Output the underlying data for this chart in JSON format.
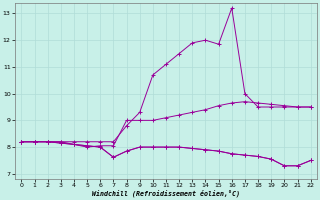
{
  "xlabel": "Windchill (Refroidissement éolien,°C)",
  "bg_color": "#c8f0e8",
  "line_color": "#990099",
  "grid_color": "#b0ddd8",
  "xlim": [
    -0.5,
    22.5
  ],
  "ylim": [
    6.8,
    13.4
  ],
  "yticks": [
    7,
    8,
    9,
    10,
    11,
    12,
    13
  ],
  "xticks": [
    0,
    1,
    2,
    3,
    4,
    5,
    6,
    7,
    8,
    9,
    10,
    11,
    12,
    13,
    14,
    15,
    16,
    17,
    18,
    19,
    20,
    21,
    22
  ],
  "lines": [
    [
      8.2,
      8.2,
      8.2,
      8.2,
      8.2,
      8.2,
      8.2,
      8.2,
      8.8,
      9.3,
      10.7,
      11.1,
      11.5,
      11.9,
      12.0,
      11.85,
      13.2,
      10.0,
      9.5,
      9.5,
      9.5,
      9.5,
      9.5
    ],
    [
      8.2,
      8.2,
      8.2,
      8.2,
      8.1,
      8.0,
      8.05,
      8.05,
      9.0,
      9.0,
      9.0,
      9.1,
      9.2,
      9.3,
      9.4,
      9.55,
      9.65,
      9.7,
      9.65,
      9.6,
      9.55,
      9.5,
      9.5
    ],
    [
      8.2,
      8.2,
      8.2,
      8.15,
      8.1,
      8.05,
      8.0,
      7.62,
      7.85,
      8.0,
      8.0,
      8.0,
      8.0,
      7.95,
      7.9,
      7.85,
      7.75,
      7.7,
      7.65,
      7.55,
      7.3,
      7.3,
      7.5
    ],
    [
      8.2,
      8.2,
      8.2,
      8.15,
      8.1,
      8.05,
      8.0,
      7.62,
      7.85,
      8.0,
      8.0,
      8.0,
      8.0,
      7.95,
      7.9,
      7.85,
      7.75,
      7.7,
      7.65,
      7.55,
      7.3,
      7.3,
      7.5
    ]
  ]
}
